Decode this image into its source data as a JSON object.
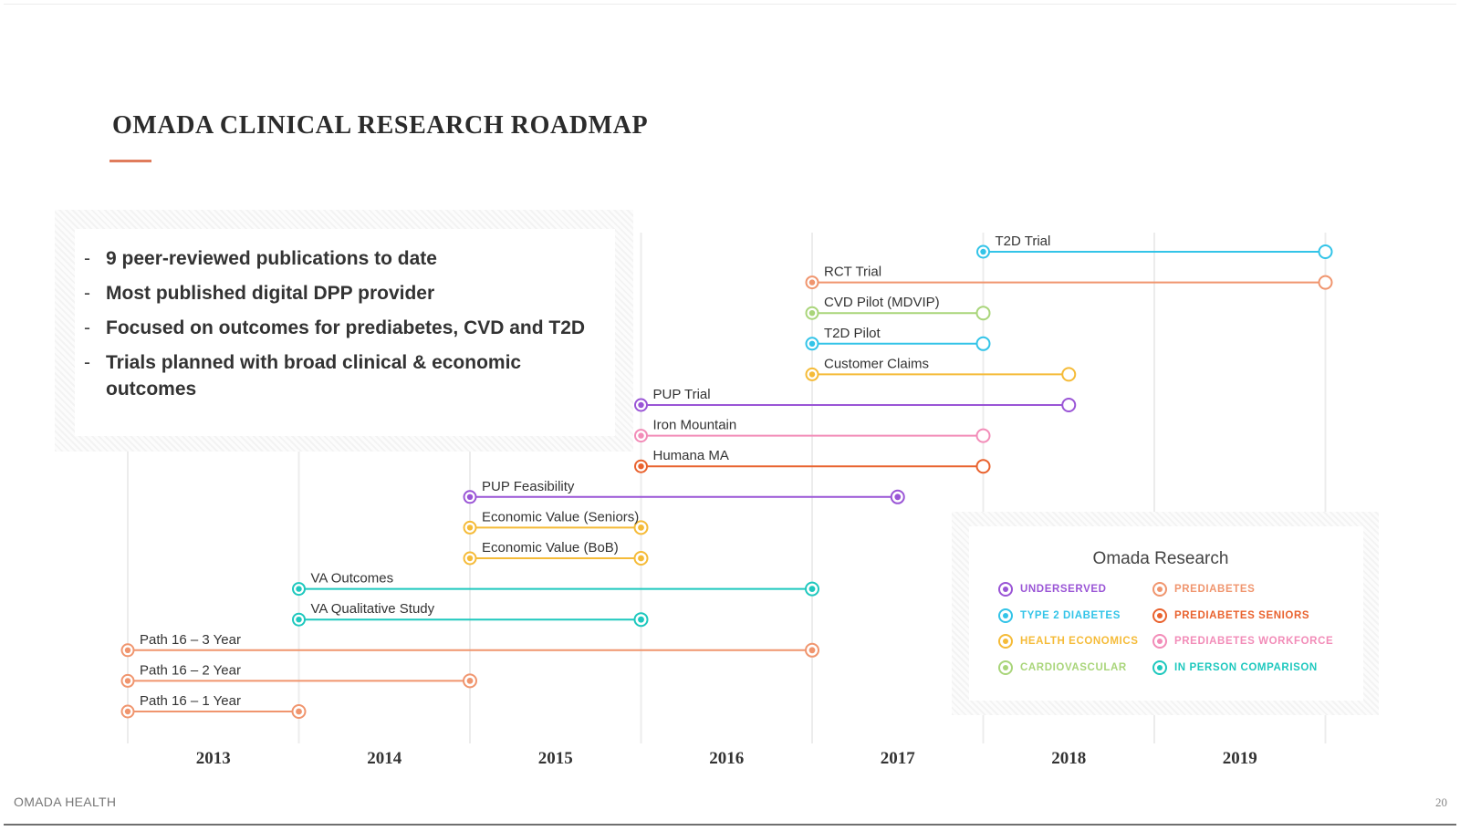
{
  "title": "OMADA CLINICAL RESEARCH ROADMAP",
  "bullets": [
    "9 peer-reviewed publications to date",
    "Most published digital DPP provider",
    "Focused on outcomes for prediabetes, CVD and T2D",
    "Trials planned with broad clinical & economic outcomes"
  ],
  "years": [
    "2013",
    "2014",
    "2015",
    "2016",
    "2017",
    "2018",
    "2019"
  ],
  "categories": {
    "underserved": {
      "label": "UNDERSERVED",
      "color": "#9a55d6"
    },
    "type2": {
      "label": "TYPE 2 DIABETES",
      "color": "#33c4e8"
    },
    "health_econ": {
      "label": "HEALTH ECONOMICS",
      "color": "#f5bb38"
    },
    "cardio": {
      "label": "CARDIOVASCULAR",
      "color": "#a9d57a"
    },
    "prediabetes": {
      "label": "PREDIABETES",
      "color": "#f0956e"
    },
    "pre_seniors": {
      "label": "PREDIABETES SENIORS",
      "color": "#e9622e"
    },
    "pre_workforce": {
      "label": "PREDIABETES WORKFORCE",
      "color": "#f28cb8"
    },
    "in_person": {
      "label": "IN PERSON COMPARISON",
      "color": "#1ec8be"
    }
  },
  "legend": {
    "title": "Omada Research",
    "left": [
      "underserved",
      "type2",
      "health_econ",
      "cardio"
    ],
    "right": [
      "prediabetes",
      "pre_seniors",
      "pre_workforce",
      "in_person"
    ]
  },
  "timelines": [
    {
      "name": "T2D Trial",
      "category": "type2",
      "start": 2018.0,
      "end": 2020.0,
      "end_marker": "open"
    },
    {
      "name": "RCT Trial",
      "category": "prediabetes",
      "start": 2017.0,
      "end": 2020.0,
      "end_marker": "open"
    },
    {
      "name": "CVD Pilot (MDVIP)",
      "category": "cardio",
      "start": 2017.0,
      "end": 2018.0,
      "end_marker": "open"
    },
    {
      "name": "T2D Pilot",
      "category": "type2",
      "start": 2017.0,
      "end": 2018.0,
      "end_marker": "open"
    },
    {
      "name": "Customer Claims",
      "category": "health_econ",
      "start": 2017.0,
      "end": 2018.5,
      "end_marker": "open"
    },
    {
      "name": "PUP Trial",
      "category": "underserved",
      "start": 2016.0,
      "end": 2018.5,
      "end_marker": "open"
    },
    {
      "name": "Iron Mountain",
      "category": "pre_workforce",
      "start": 2016.0,
      "end": 2018.0,
      "end_marker": "open"
    },
    {
      "name": "Humana MA",
      "category": "pre_seniors",
      "start": 2016.0,
      "end": 2018.0,
      "end_marker": "open"
    },
    {
      "name": "PUP Feasibility",
      "category": "underserved",
      "start": 2015.0,
      "end": 2017.5,
      "end_marker": "filled"
    },
    {
      "name": "Economic Value (Seniors)",
      "category": "health_econ",
      "start": 2015.0,
      "end": 2016.0,
      "end_marker": "filled"
    },
    {
      "name": "Economic Value (BoB)",
      "category": "health_econ",
      "start": 2015.0,
      "end": 2016.0,
      "end_marker": "filled"
    },
    {
      "name": "VA Outcomes",
      "category": "in_person",
      "start": 2014.0,
      "end": 2017.0,
      "end_marker": "filled"
    },
    {
      "name": "VA Qualitative Study",
      "category": "in_person",
      "start": 2014.0,
      "end": 2016.0,
      "end_marker": "filled"
    },
    {
      "name": "Path 16 – 3 Year",
      "category": "prediabetes",
      "start": 2013.0,
      "end": 2017.0,
      "end_marker": "filled"
    },
    {
      "name": "Path 16 – 2 Year",
      "category": "prediabetes",
      "start": 2013.0,
      "end": 2015.0,
      "end_marker": "filled"
    },
    {
      "name": "Path 16 – 1 Year",
      "category": "prediabetes",
      "start": 2013.0,
      "end": 2014.0,
      "end_marker": "filled"
    }
  ],
  "footer": {
    "left": "OMADA HEALTH",
    "page": "20"
  }
}
